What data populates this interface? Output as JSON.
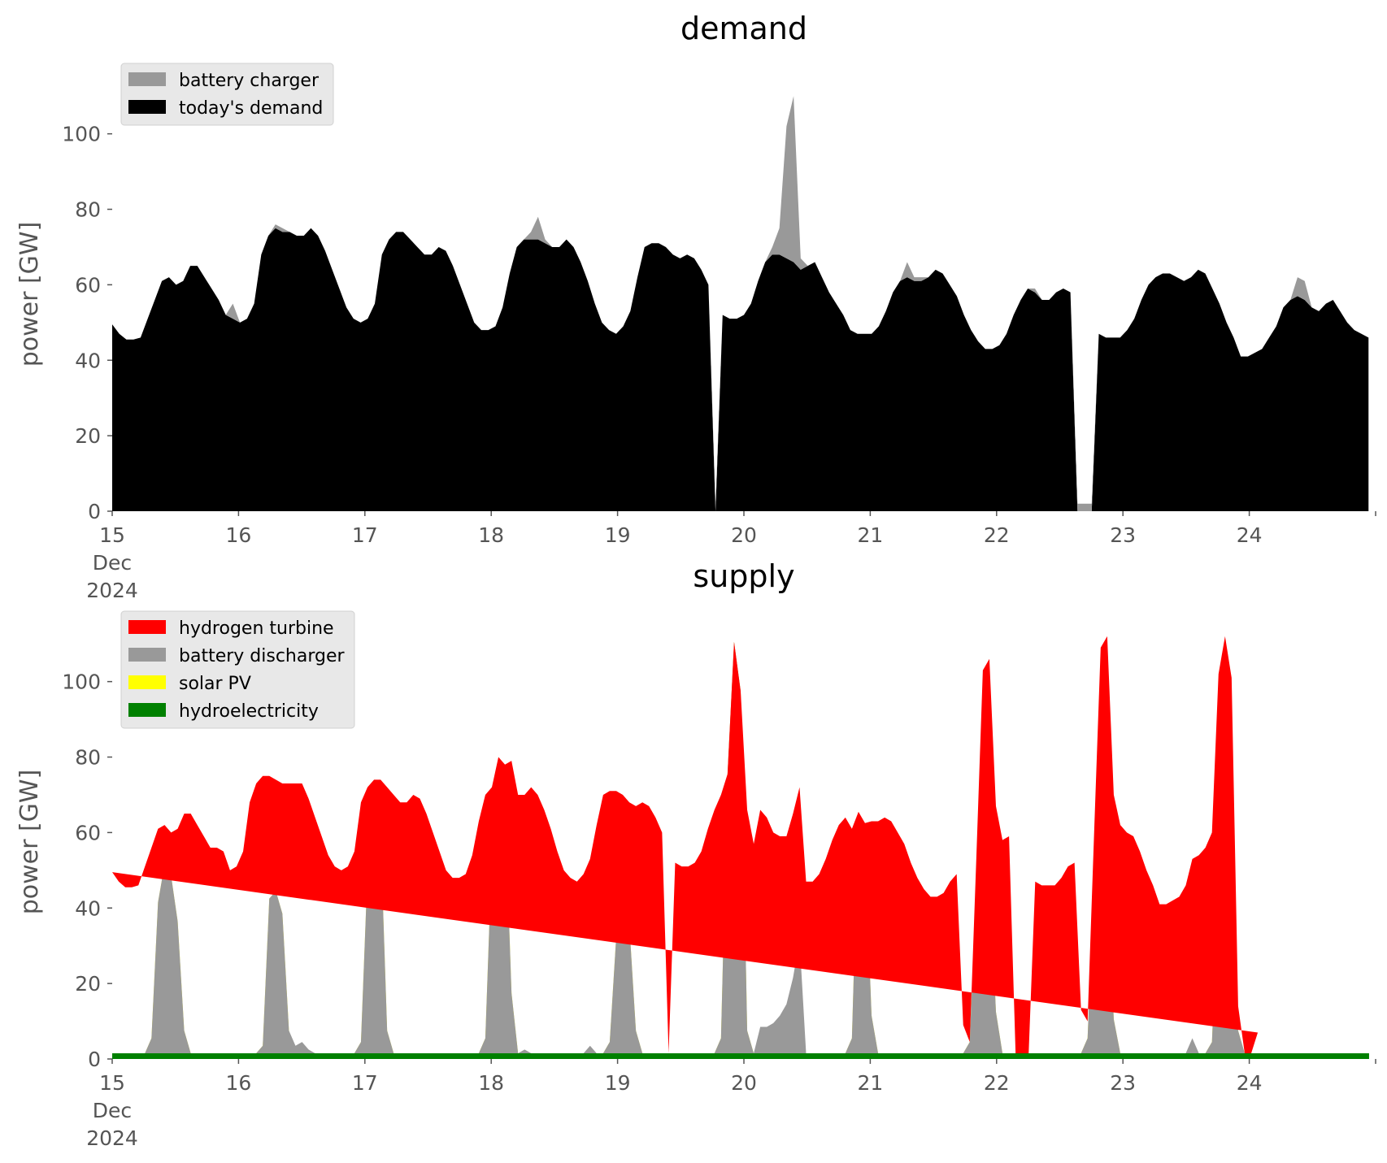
{
  "chart_data": [
    {
      "type": "area",
      "stacked": true,
      "title": "demand",
      "ylabel": "power [GW]",
      "xlabel": "",
      "xlim": [
        "2024-12-15T00:00",
        "2024-12-25T00:00"
      ],
      "ylim": [
        0,
        115
      ],
      "grid": false,
      "legend_position": "top-left",
      "x_tick_labels": [
        "15",
        "16",
        "17",
        "18",
        "19",
        "20",
        "21",
        "22",
        "23",
        "24"
      ],
      "x_tick_sublabels": [
        "Dec",
        "2024"
      ],
      "y_ticks": [
        0,
        20,
        40,
        60,
        80,
        100
      ],
      "x_interval_hours": 2,
      "x_start": "2024-12-15T00:00",
      "series": [
        {
          "name": "today's demand",
          "color": "#000000",
          "values": [
            49.5,
            47,
            45.5,
            45.5,
            46,
            51,
            56,
            61,
            62,
            60,
            61,
            65,
            65,
            62,
            59,
            56,
            52,
            51,
            50,
            51,
            55,
            68,
            73,
            75,
            74,
            74,
            73,
            73,
            75,
            73,
            69,
            64,
            59,
            54,
            51,
            50,
            51,
            55,
            68,
            72,
            74,
            74,
            72,
            70,
            68,
            68,
            70,
            69,
            65,
            60,
            55,
            50,
            48,
            48,
            49,
            54,
            63,
            70,
            72,
            72,
            72,
            71,
            70,
            70,
            72,
            70,
            66,
            61,
            55,
            50,
            48,
            47,
            49,
            53,
            62,
            70,
            71,
            71,
            70,
            68,
            67,
            68,
            67,
            64,
            60,
            0,
            52,
            51,
            51,
            52,
            55,
            61,
            66,
            68,
            68,
            67,
            66,
            64,
            65,
            66,
            62,
            58,
            55,
            52,
            48,
            47,
            47,
            47,
            49,
            53,
            58,
            61,
            62,
            61,
            61,
            62,
            64,
            63,
            60,
            57,
            52,
            48,
            45,
            43,
            43,
            44,
            47,
            52,
            56,
            59,
            58,
            56,
            56,
            58,
            59,
            58,
            0,
            0,
            0,
            47,
            46,
            46,
            46,
            48,
            51,
            56,
            60,
            62,
            63,
            63,
            62,
            61,
            62,
            64,
            63,
            59,
            55,
            50,
            46,
            41,
            41,
            42,
            43,
            46,
            49,
            54,
            56,
            57,
            56,
            54,
            53,
            55,
            56,
            53,
            50,
            48,
            47,
            46
          ]
        },
        {
          "name": "battery charger",
          "color": "#999999",
          "values": [
            0,
            0,
            0,
            0,
            0,
            0,
            0,
            0,
            0,
            0,
            0,
            0,
            0,
            0,
            0,
            0,
            0,
            4,
            0,
            0,
            0,
            0,
            0,
            1,
            1,
            0,
            0,
            0,
            0,
            0,
            0,
            0,
            0,
            0,
            0,
            0,
            0,
            0,
            0,
            0,
            0,
            0,
            0,
            0,
            0,
            0,
            0,
            0,
            0,
            0,
            0,
            0,
            0,
            0,
            0,
            0,
            0,
            0,
            0,
            2,
            6,
            1,
            0,
            0,
            0,
            0,
            0,
            0,
            0,
            0,
            0,
            0,
            0,
            0,
            0,
            0,
            0,
            0,
            0,
            0,
            0,
            0,
            0,
            0,
            0,
            1.5,
            0,
            0,
            0,
            0,
            0,
            0,
            0,
            2,
            7,
            35,
            44,
            3,
            0,
            0,
            0,
            0,
            0,
            0,
            0,
            0,
            0,
            0,
            0,
            0,
            0,
            0,
            4,
            1,
            1,
            0,
            0,
            0,
            0,
            0,
            0,
            0,
            0,
            0,
            0,
            0,
            0,
            0,
            0,
            0,
            1,
            0,
            0,
            0,
            0,
            0,
            2,
            2,
            2,
            0,
            0,
            0,
            0,
            0,
            0,
            0,
            0,
            0,
            0,
            0,
            0,
            0,
            0,
            0,
            0,
            0,
            0,
            0,
            0,
            0,
            0,
            0,
            0,
            0,
            0,
            0,
            0,
            5,
            5,
            0,
            0,
            0,
            0,
            0,
            0,
            0,
            0,
            0
          ]
        }
      ]
    },
    {
      "type": "area",
      "stacked": true,
      "title": "supply",
      "ylabel": "power [GW]",
      "xlabel": "",
      "xlim": [
        "2024-12-15T00:00",
        "2024-12-25T00:00"
      ],
      "ylim": [
        0,
        115
      ],
      "grid": false,
      "legend_position": "top-left",
      "x_tick_labels": [
        "15",
        "16",
        "17",
        "18",
        "19",
        "20",
        "21",
        "22",
        "23",
        "24"
      ],
      "x_tick_sublabels": [
        "Dec",
        "2024"
      ],
      "y_ticks": [
        0,
        20,
        40,
        60,
        80,
        100
      ],
      "x_interval_hours": 2,
      "x_start": "2024-12-15T00:00",
      "legend_order": [
        "hydrogen turbine",
        "battery discharger",
        "solar PV",
        "hydroelectricity"
      ],
      "series": [
        {
          "name": "hydroelectricity",
          "color": "#008000",
          "values": [
            1.5,
            1.5,
            1.5,
            1.5,
            1.5,
            1.5,
            1.5,
            1.5,
            1.5,
            1.5,
            1.5,
            1.5,
            1.5,
            1.5,
            1.5,
            1.5,
            1.5,
            1.5,
            1.5,
            1.5,
            1.5,
            1.5,
            1.5,
            1.5,
            1.5,
            1.5,
            1.5,
            1.5,
            1.5,
            1.5,
            1.5,
            1.5,
            1.5,
            1.5,
            1.5,
            1.5,
            1.5,
            1.5,
            1.5,
            1.5,
            1.5,
            1.5,
            1.5,
            1.5,
            1.5,
            1.5,
            1.5,
            1.5,
            1.5,
            1.5,
            1.5,
            1.5,
            1.5,
            1.5,
            1.5,
            1.5,
            1.5,
            1.5,
            1.5,
            1.5,
            1.5,
            1.5,
            1.5,
            1.5,
            1.5,
            1.5,
            1.5,
            1.5,
            1.5,
            1.5,
            1.5,
            1.5,
            1.5,
            1.5,
            1.5,
            1.5,
            1.5,
            1.5,
            1.5,
            1.5,
            1.5,
            1.5,
            1.5,
            1.5,
            1.5,
            1.5,
            1.5,
            1.5,
            1.5,
            1.5,
            1.5,
            1.5,
            1.5,
            1.5,
            1.5,
            1.5,
            1.5,
            1.5,
            1.5,
            1.5,
            1.5,
            1.5,
            1.5,
            1.5,
            1.5,
            1.5,
            1.5,
            1.5,
            1.5,
            1.5,
            1.5,
            1.5,
            1.5,
            1.5,
            1.5,
            1.5,
            1.5,
            1.5,
            1.5,
            1.5,
            1.5,
            1.5,
            1.5,
            1.5,
            1.5,
            1.5,
            1.5,
            1.5,
            1.5,
            1.5,
            1.5,
            1.5,
            1.5,
            1.5,
            1.5,
            1.5,
            1.5,
            1.5,
            1.5,
            1.5,
            1.5,
            1.5,
            1.5,
            1.5,
            1.5,
            1.5,
            1.5,
            1.5,
            1.5,
            1.5,
            1.5,
            1.5,
            1.5,
            1.5,
            1.5,
            1.5,
            1.5,
            1.5,
            1.5,
            1.5,
            1.5,
            1.5,
            1.5,
            1.5,
            1.5,
            1.5,
            1.5,
            1.5,
            1.5,
            1.5,
            1.5,
            1.5,
            1.5,
            1.5,
            1.5,
            1.5,
            1.5,
            1.5,
            1.5,
            1.5,
            1.5,
            1.5,
            1.5,
            1.5,
            1.5,
            1.5,
            1.5,
            1.5,
            1.5,
            1.5,
            1.5,
            1.5,
            1.5
          ]
        },
        {
          "name": "solar PV",
          "color": "#ffff00",
          "values": [
            0,
            0,
            0,
            0,
            0,
            0,
            4,
            40,
            50,
            47,
            35,
            6,
            0,
            0,
            0,
            0,
            0,
            0,
            0,
            0,
            0,
            0,
            0,
            2,
            41,
            43,
            37,
            6,
            0,
            0,
            0,
            0,
            0,
            0,
            0,
            0,
            0,
            0,
            3,
            48,
            67,
            58,
            6,
            0,
            0,
            0,
            0,
            0,
            0,
            0,
            0,
            0,
            0,
            0,
            0,
            0,
            0,
            4,
            53,
            76,
            66,
            16,
            0,
            0,
            0,
            0,
            0,
            0,
            0,
            0,
            0,
            0,
            0,
            0,
            0,
            0,
            3,
            31,
            40,
            34,
            6,
            0,
            0,
            0,
            0,
            0,
            0,
            0,
            0,
            0,
            0,
            0,
            0,
            4,
            74,
            109,
            96,
            6,
            0,
            0,
            0,
            0,
            0,
            0,
            0,
            0,
            0,
            0,
            0,
            0,
            0,
            0,
            0,
            4,
            64,
            55,
            10,
            0,
            0,
            0,
            0,
            0,
            0,
            0,
            0,
            0,
            0,
            0,
            0,
            0,
            0,
            3,
            46,
            57,
            50,
            11,
            0,
            0,
            0,
            0,
            0,
            0,
            0,
            0,
            0,
            0,
            0,
            0,
            0,
            4,
            47,
            57,
            50,
            9,
            0,
            0,
            0,
            0,
            0,
            0,
            0,
            0,
            0,
            0,
            0,
            0,
            0,
            0,
            3,
            46,
            59,
            51,
            6,
            0,
            0,
            0
          ]
        },
        {
          "name": "battery discharger",
          "color": "#999999",
          "values": [
            0,
            0,
            0,
            0,
            0,
            0,
            0,
            0,
            0,
            0,
            0,
            0,
            0,
            0,
            0,
            0,
            0,
            0,
            0,
            0,
            0,
            0,
            0,
            0,
            0,
            0,
            0,
            0,
            2,
            3,
            1,
            0,
            0,
            0,
            0,
            0,
            0,
            0,
            0,
            0,
            0,
            0,
            0,
            0,
            0,
            0,
            0,
            0,
            0,
            0,
            0,
            0,
            0,
            0,
            0,
            0,
            0,
            0,
            0,
            0,
            0,
            0,
            0,
            1,
            0,
            0,
            0,
            0,
            0,
            0,
            0,
            0,
            0,
            2,
            0,
            0,
            0,
            0,
            0,
            0,
            0,
            0,
            0,
            0,
            0,
            0,
            0,
            0,
            0,
            0,
            0,
            0,
            0,
            0,
            0,
            0,
            0,
            0,
            0,
            7,
            7,
            8,
            10,
            13,
            20,
            30,
            0,
            0,
            0,
            0,
            0,
            0,
            0,
            0,
            0,
            0,
            0,
            0,
            0,
            0,
            0,
            0,
            0,
            0,
            0,
            0,
            0,
            0,
            0,
            0,
            0,
            0,
            0,
            0,
            0,
            0,
            0,
            0,
            0,
            0,
            0,
            0,
            0,
            0,
            0,
            0,
            0,
            0,
            0,
            0,
            0,
            0,
            0,
            0,
            0,
            0,
            0,
            0,
            0,
            0,
            0,
            0,
            0,
            0,
            0,
            4,
            0,
            0,
            0,
            0,
            0,
            0,
            0,
            0,
            0,
            0,
            0,
            0,
            0,
            0,
            0,
            0,
            0,
            0,
            0,
            0,
            0,
            0,
            3
          ]
        },
        {
          "name": "hydrogen turbine",
          "color": "#ff0000",
          "values": [
            48,
            45.5,
            44,
            44,
            44.5,
            49.5,
            50.5,
            19.5,
            10.5,
            11.5,
            24.5,
            57.5,
            63.5,
            60.5,
            57.5,
            54.5,
            54.5,
            53.5,
            48.5,
            49.5,
            53.5,
            66.5,
            71.5,
            71.5,
            32.5,
            29.5,
            34.5,
            65.5,
            69.5,
            68.5,
            66.5,
            62.5,
            57.5,
            52.5,
            49.5,
            48.5,
            49.5,
            53.5,
            63.5,
            22.5,
            5.5,
            14.5,
            64.5,
            68.5,
            66.5,
            66.5,
            68.5,
            67.5,
            63.5,
            58.5,
            53.5,
            48.5,
            46.5,
            46.5,
            47.5,
            52.5,
            61.5,
            64.5,
            17.5,
            2.5,
            10.5,
            61.5,
            68.5,
            67.5,
            70.5,
            68.5,
            64.5,
            59.5,
            53.5,
            48.5,
            46.5,
            45.5,
            47.5,
            49.5,
            60.5,
            68.5,
            66.5,
            38.5,
            28.5,
            32.5,
            59.5,
            66.5,
            65.5,
            62.5,
            58.5,
            0,
            50.5,
            49.5,
            49.5,
            50.5,
            53.5,
            59.5,
            64.5,
            64.5,
            0,
            0,
            0,
            58.5,
            55.5,
            57.5,
            55.5,
            50.5,
            47.5,
            44.5,
            43.5,
            40.5,
            45.5,
            45.5,
            47.5,
            51.5,
            56.5,
            60.5,
            62.5,
            55.5,
            0,
            6,
            51.5,
            61.5,
            62.5,
            61.5,
            58.5,
            55.5,
            50.5,
            46.5,
            43.5,
            41.5,
            41.5,
            42.5,
            45.5,
            47.5,
            7.5,
            0,
            5.5,
            44.5,
            54.5,
            54.5,
            56.5,
            57.5,
            0,
            0,
            0,
            45.5,
            44.5,
            44.5,
            44.5,
            46.5,
            49.5,
            50.5,
            11.5,
            4.5,
            11.5,
            50.5,
            60.5,
            59.5,
            60.5,
            58.5,
            57.5,
            53.5,
            48.5,
            44.5,
            39.5,
            39.5,
            40.5,
            41.5,
            44.5,
            47.5,
            52.5,
            54.5,
            55.5,
            54.5,
            51.5,
            48.5,
            6.5,
            0,
            0,
            5.5,
            48.5,
            46.5,
            45.5,
            41.5
          ]
        }
      ]
    }
  ]
}
